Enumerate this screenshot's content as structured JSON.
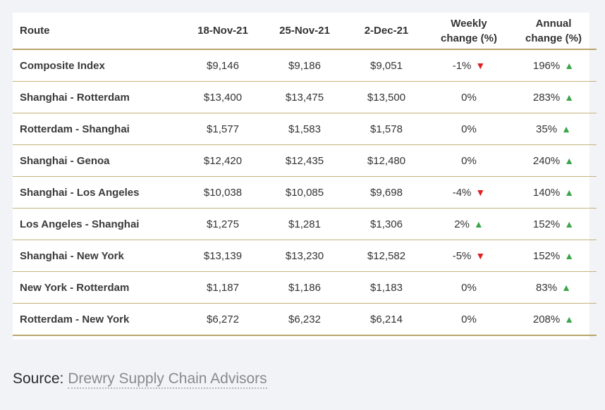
{
  "table": {
    "headers": {
      "route": "Route",
      "d1": "18-Nov-21",
      "d2": "25-Nov-21",
      "d3": "2-Dec-21",
      "weekly_l1": "Weekly",
      "weekly_l2": "change (%)",
      "annual_l1": "Annual",
      "annual_l2": "change (%)"
    },
    "rows": [
      {
        "route": "Composite Index",
        "d1": "$9,146",
        "d2": "$9,186",
        "d3": "$9,051",
        "weekly": "-1%",
        "weekly_dir": "down",
        "annual": "196%",
        "annual_dir": "up"
      },
      {
        "route": "Shanghai - Rotterdam",
        "d1": "$13,400",
        "d2": "$13,475",
        "d3": "$13,500",
        "weekly": "0%",
        "weekly_dir": "none",
        "annual": "283%",
        "annual_dir": "up"
      },
      {
        "route": "Rotterdam - Shanghai",
        "d1": "$1,577",
        "d2": "$1,583",
        "d3": "$1,578",
        "weekly": "0%",
        "weekly_dir": "none",
        "annual": "35%",
        "annual_dir": "up"
      },
      {
        "route": "Shanghai - Genoa",
        "d1": "$12,420",
        "d2": "$12,435",
        "d3": "$12,480",
        "weekly": "0%",
        "weekly_dir": "none",
        "annual": "240%",
        "annual_dir": "up"
      },
      {
        "route": "Shanghai - Los Angeles",
        "d1": "$10,038",
        "d2": "$10,085",
        "d3": "$9,698",
        "weekly": "-4%",
        "weekly_dir": "down",
        "annual": "140%",
        "annual_dir": "up"
      },
      {
        "route": "Los Angeles - Shanghai",
        "d1": "$1,275",
        "d2": "$1,281",
        "d3": "$1,306",
        "weekly": "2%",
        "weekly_dir": "up",
        "annual": "152%",
        "annual_dir": "up"
      },
      {
        "route": "Shanghai - New York",
        "d1": "$13,139",
        "d2": "$13,230",
        "d3": "$12,582",
        "weekly": "-5%",
        "weekly_dir": "down",
        "annual": "152%",
        "annual_dir": "up"
      },
      {
        "route": "New York - Rotterdam",
        "d1": "$1,187",
        "d2": "$1,186",
        "d3": "$1,183",
        "weekly": "0%",
        "weekly_dir": "none",
        "annual": "83%",
        "annual_dir": "up"
      },
      {
        "route": "Rotterdam - New York",
        "d1": "$6,272",
        "d2": "$6,232",
        "d3": "$6,214",
        "weekly": "0%",
        "weekly_dir": "none",
        "annual": "208%",
        "annual_dir": "up"
      }
    ]
  },
  "source": {
    "label": "Source:",
    "link_text": "Drewry Supply Chain Advisors"
  },
  "icons": {
    "up": "triangle-up-icon",
    "down": "triangle-down-icon"
  },
  "colors": {
    "up": "#3aa64a",
    "down": "#e02020",
    "rule": "#b8a46a"
  }
}
